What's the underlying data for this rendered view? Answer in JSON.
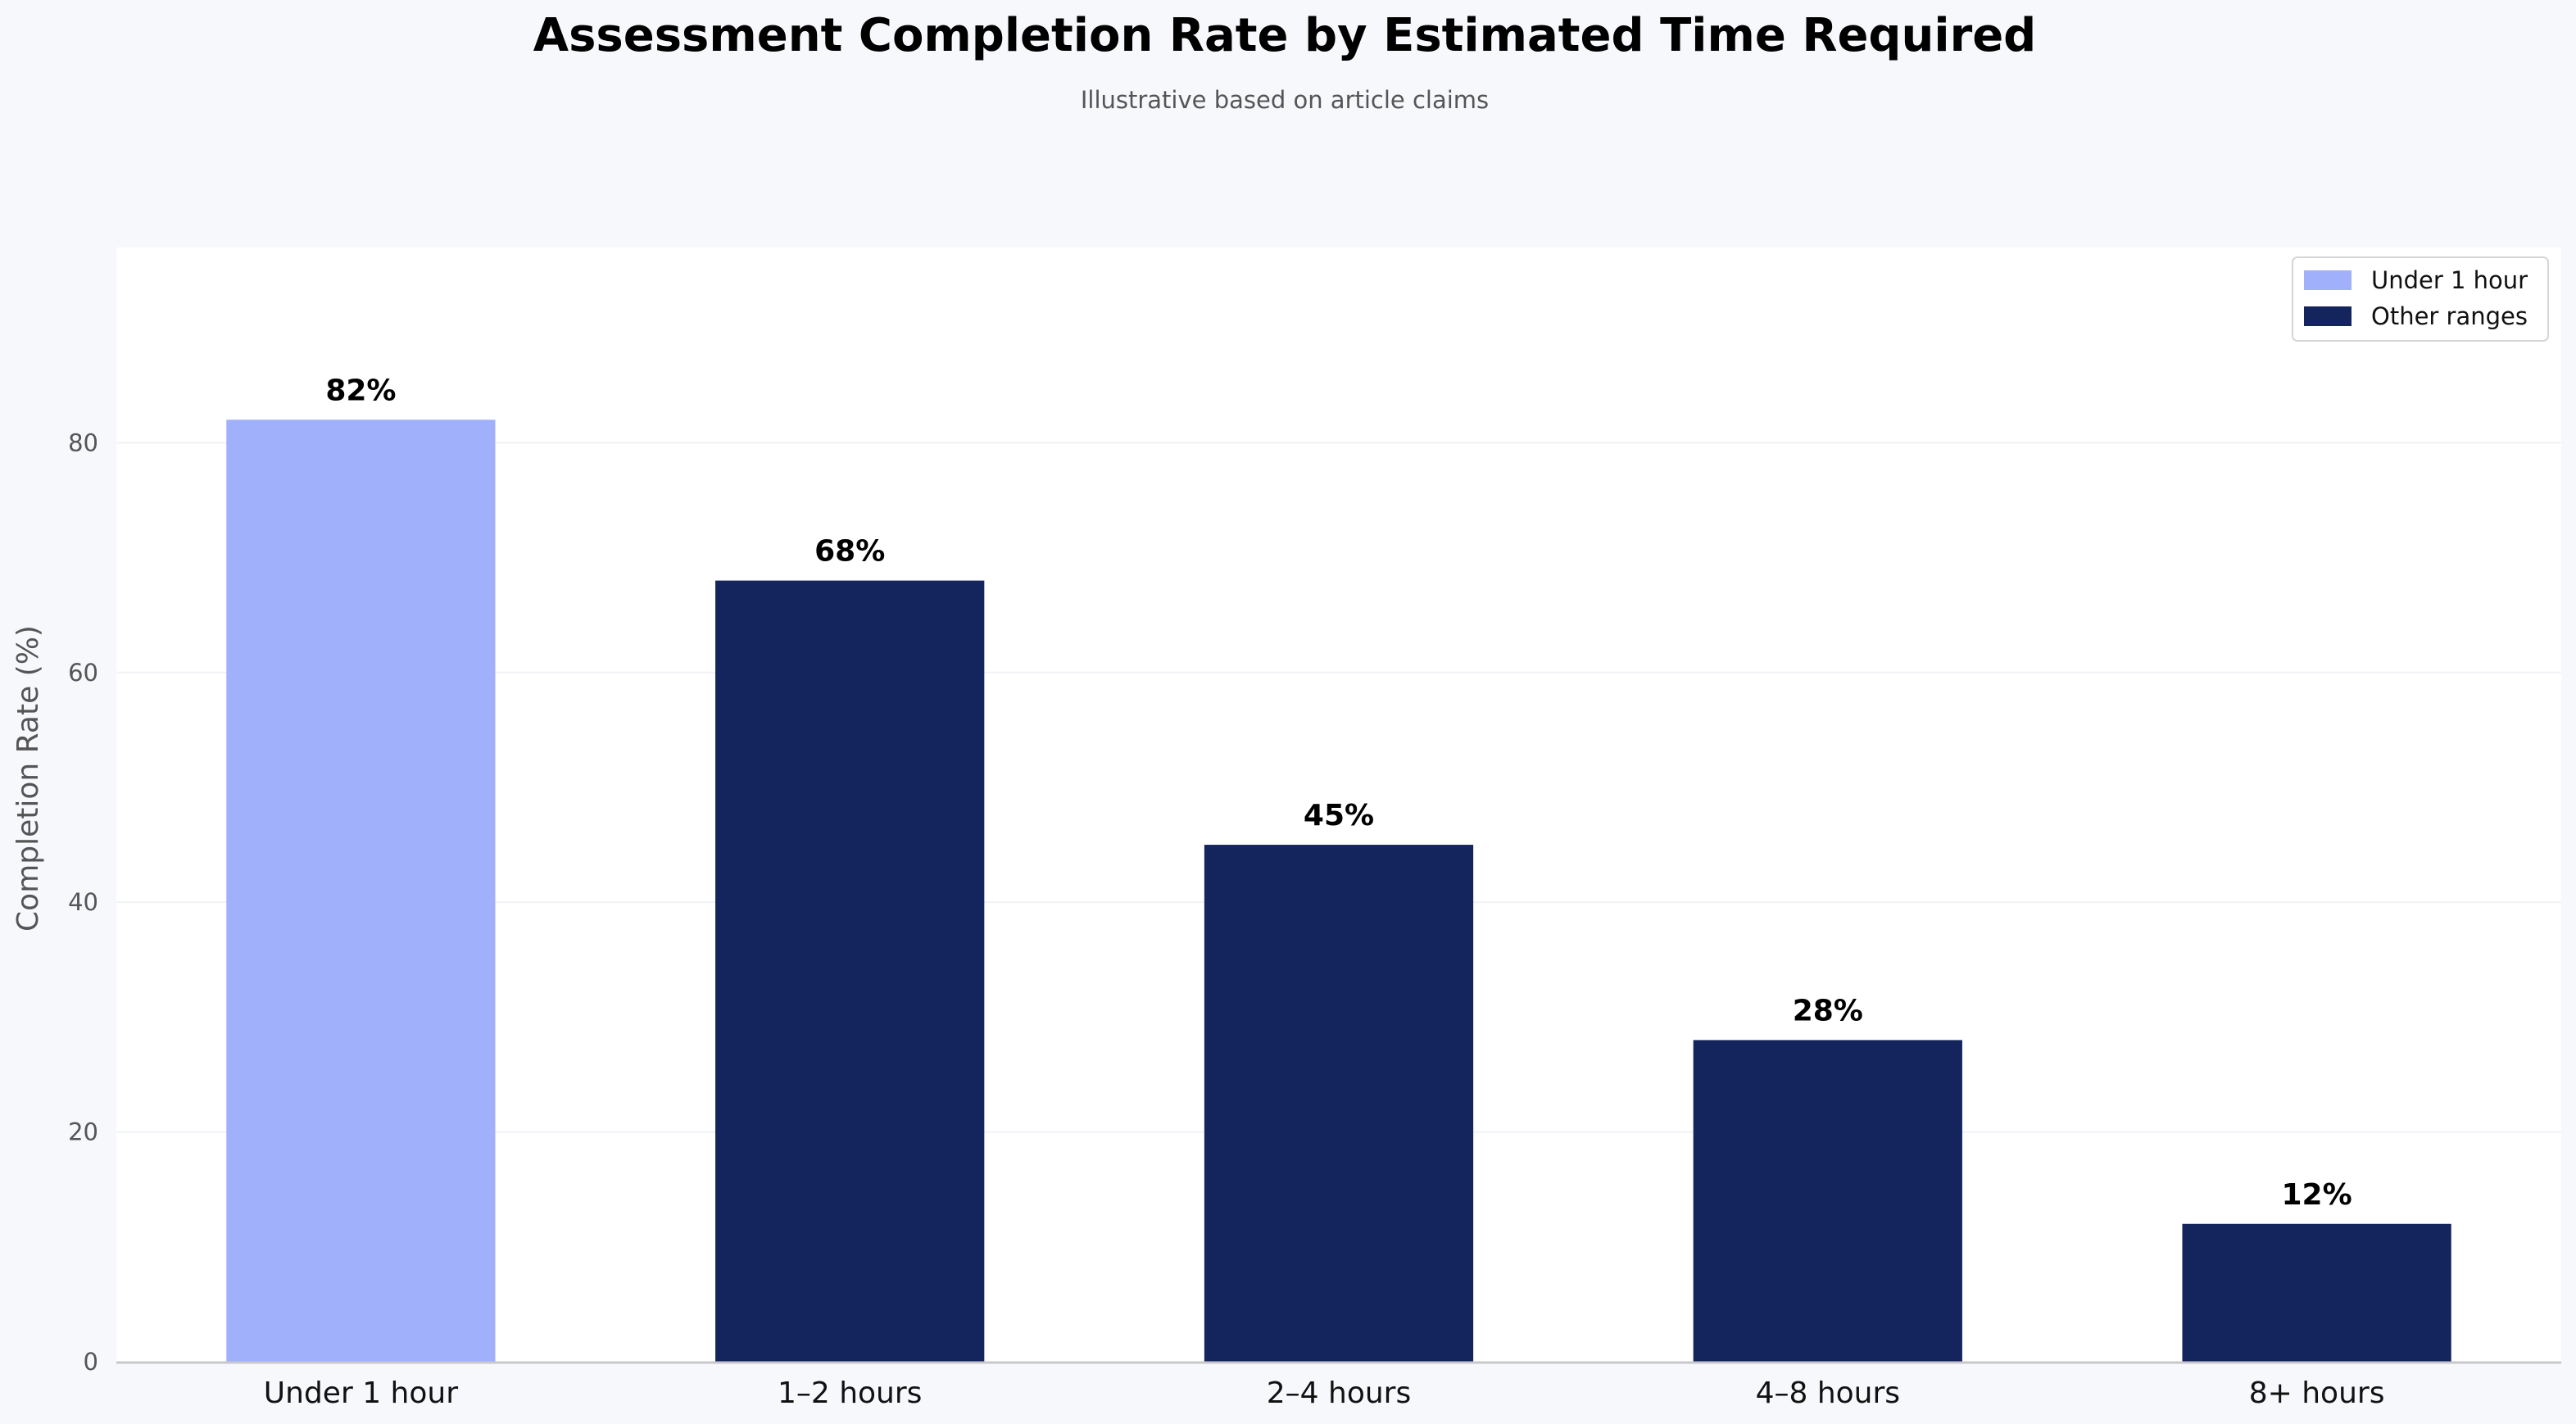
{
  "chart_data": {
    "type": "bar",
    "title": "Assessment Completion Rate by Estimated Time Required",
    "subtitle": "Illustrative based on article claims",
    "xlabel": "",
    "ylabel": "Completion Rate (%)",
    "categories": [
      "Under 1 hour",
      "1–2 hours",
      "2–4 hours",
      "4–8 hours",
      "8+ hours"
    ],
    "values": [
      82,
      68,
      45,
      28,
      12
    ],
    "value_labels": [
      "82%",
      "68%",
      "45%",
      "28%",
      "12%"
    ],
    "bar_groups": [
      "Under 1 hour",
      "Other ranges",
      "Other ranges",
      "Other ranges",
      "Other ranges"
    ],
    "ylim": [
      0,
      97
    ],
    "yticks": [
      0,
      20,
      40,
      60,
      80
    ],
    "grid": true,
    "legend": {
      "placement": "top-right",
      "entries": [
        {
          "label": "Under 1 hour",
          "color": "#a0b0fb"
        },
        {
          "label": "Other ranges",
          "color": "#14245c"
        }
      ]
    }
  },
  "colors": {
    "page_background": "#f7f8fc",
    "plot_background": "#ffffff",
    "highlight_bar": "#a0b0fb",
    "other_bar": "#14245c",
    "axis_line": "#c8c8cc",
    "grid_line": "#f1f2f6"
  }
}
